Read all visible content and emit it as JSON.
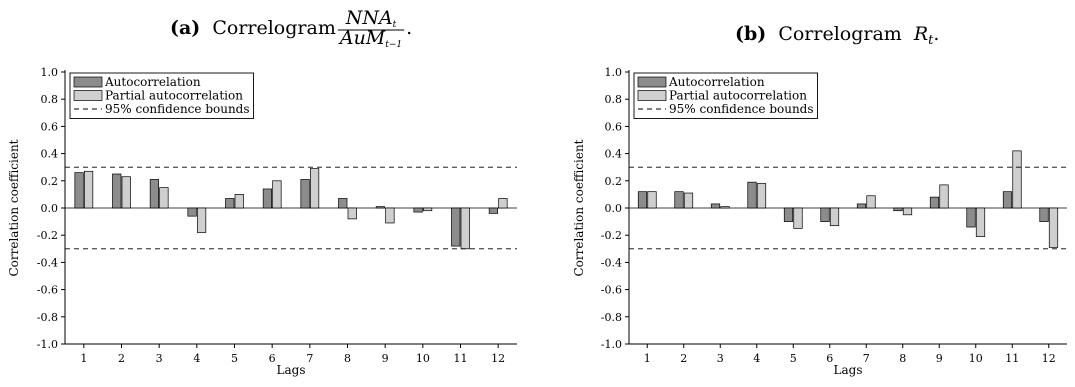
{
  "colors": {
    "autocorrelation": "#8c8c8c",
    "partial_autocorrelation": "#cfcfcf",
    "axis": "#000000"
  },
  "chart_data": [
    {
      "type": "bar",
      "panel": "(a)",
      "title_prefix": "Correlogram",
      "title_math": {
        "numerator": "NNA",
        "numerator_sub": "t",
        "denominator": "AuM",
        "denominator_sub": "t−1"
      },
      "title_suffix": ".",
      "xlabel": "Lags",
      "ylabel": "Correlation coefficient",
      "ylim": [
        -1.0,
        1.0
      ],
      "yticks": [
        "-1.0",
        "-0.8",
        "-0.6",
        "-0.4",
        "-0.2",
        "0.0",
        "0.2",
        "0.4",
        "0.6",
        "0.8",
        "1.0"
      ],
      "categories": [
        "1",
        "2",
        "3",
        "4",
        "5",
        "6",
        "7",
        "8",
        "9",
        "10",
        "11",
        "12"
      ],
      "confidence_bound": 0.3,
      "legend": {
        "placement": "top-left",
        "entries": [
          "Autocorrelation",
          "Partial autocorrelation",
          "95% confidence bounds"
        ]
      },
      "series": [
        {
          "name": "Autocorrelation",
          "values": [
            0.26,
            0.25,
            0.21,
            -0.06,
            0.07,
            0.14,
            0.21,
            0.07,
            0.01,
            -0.03,
            -0.28,
            -0.04
          ]
        },
        {
          "name": "Partial autocorrelation",
          "values": [
            0.27,
            0.23,
            0.15,
            -0.18,
            0.1,
            0.2,
            0.29,
            -0.08,
            -0.11,
            -0.02,
            -0.3,
            0.07
          ]
        }
      ]
    },
    {
      "type": "bar",
      "panel": "(b)",
      "title_prefix": "Correlogram",
      "title_math_simple": {
        "base": "R",
        "sub": "t"
      },
      "title_suffix": ".",
      "xlabel": "Lags",
      "ylabel": "Correlation coefficient",
      "ylim": [
        -1.0,
        1.0
      ],
      "yticks": [
        "-1.0",
        "-0.8",
        "-0.6",
        "-0.4",
        "-0.2",
        "0.0",
        "0.2",
        "0.4",
        "0.6",
        "0.8",
        "1.0"
      ],
      "categories": [
        "1",
        "2",
        "3",
        "4",
        "5",
        "6",
        "7",
        "8",
        "9",
        "10",
        "11",
        "12"
      ],
      "confidence_bound": 0.3,
      "legend": {
        "placement": "top-left",
        "entries": [
          "Autocorrelation",
          "Partial autocorrelation",
          "95% confidence bounds"
        ]
      },
      "series": [
        {
          "name": "Autocorrelation",
          "values": [
            0.12,
            0.12,
            0.03,
            0.19,
            -0.1,
            -0.1,
            0.03,
            -0.02,
            0.08,
            -0.14,
            0.12,
            -0.1
          ]
        },
        {
          "name": "Partial autocorrelation",
          "values": [
            0.12,
            0.11,
            0.01,
            0.18,
            -0.15,
            -0.13,
            0.09,
            -0.05,
            0.17,
            -0.21,
            0.42,
            -0.29
          ]
        }
      ]
    }
  ]
}
